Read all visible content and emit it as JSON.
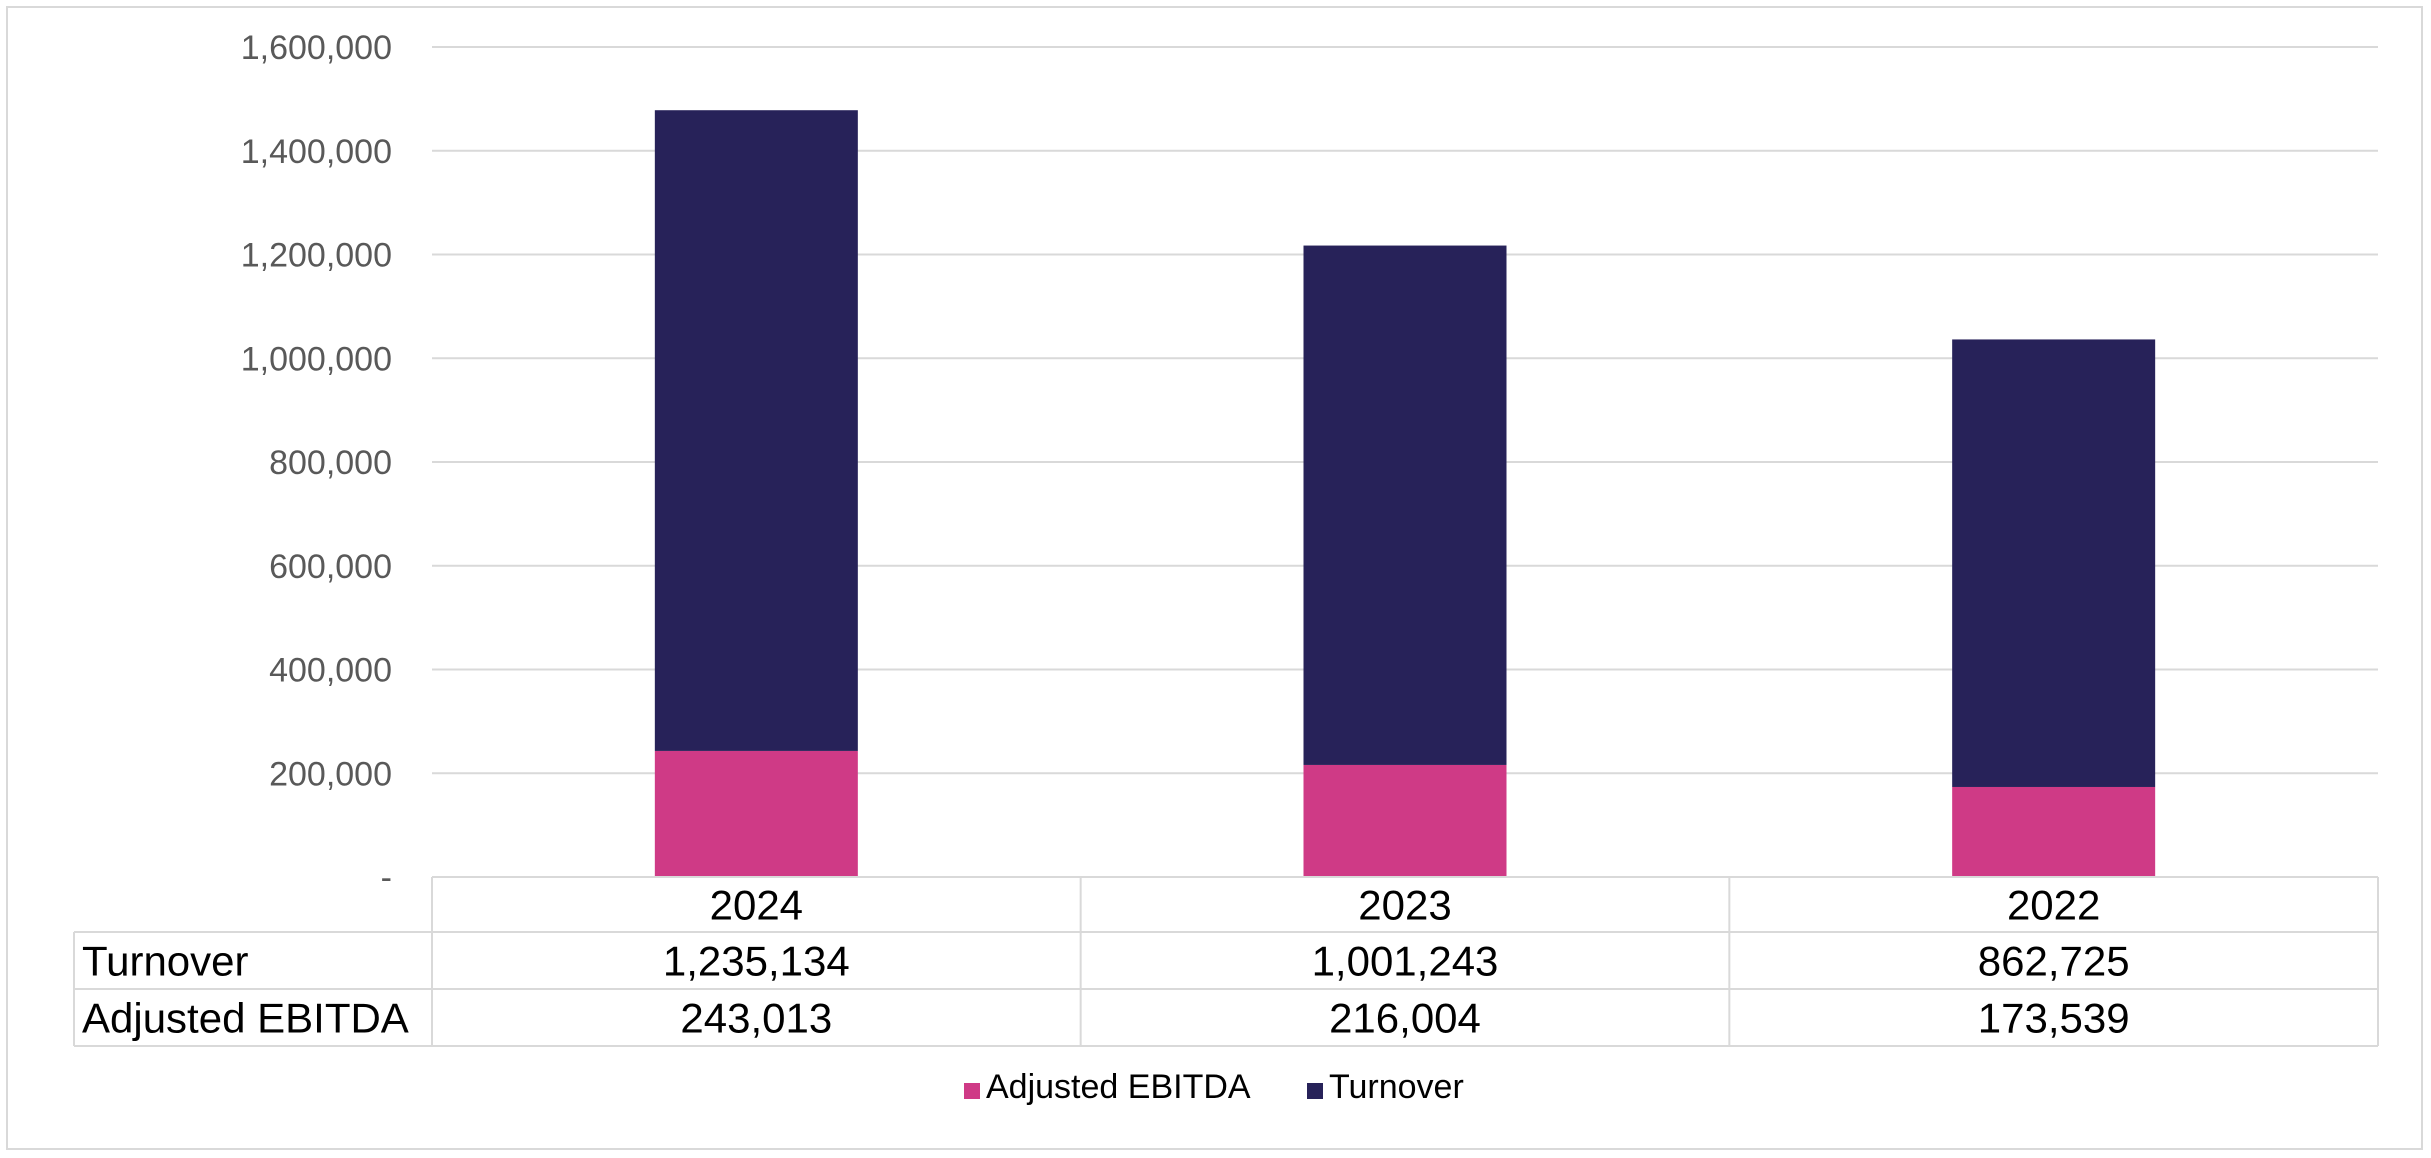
{
  "chart_data": {
    "type": "bar",
    "stacked": true,
    "categories": [
      "2024",
      "2023",
      "2022"
    ],
    "series": [
      {
        "name": "Adjusted EBITDA",
        "values": [
          243013,
          216004,
          173539
        ],
        "color": "#cf3a86"
      },
      {
        "name": "Turnover",
        "values": [
          1235134,
          1001243,
          862725
        ],
        "color": "#272259"
      }
    ],
    "ylim": [
      0,
      1600000
    ],
    "yticks": [
      0,
      200000,
      400000,
      600000,
      800000,
      1000000,
      1200000,
      1400000,
      1600000
    ],
    "ytick_labels": [
      "-",
      "200,000",
      "400,000",
      "600,000",
      "800,000",
      "1,000,000",
      "1,200,000",
      "1,400,000",
      "1,600,000"
    ],
    "grid": true,
    "legend_position": "bottom",
    "data_table": {
      "rows": [
        {
          "label": "Turnover",
          "values": [
            "1,235,134",
            "1,001,243",
            "862,725"
          ]
        },
        {
          "label": "Adjusted EBITDA",
          "values": [
            "243,013",
            "216,004",
            "173,539"
          ]
        }
      ]
    },
    "colors": {
      "gridline": "#d9d9d9",
      "tick_text": "#595959"
    }
  }
}
